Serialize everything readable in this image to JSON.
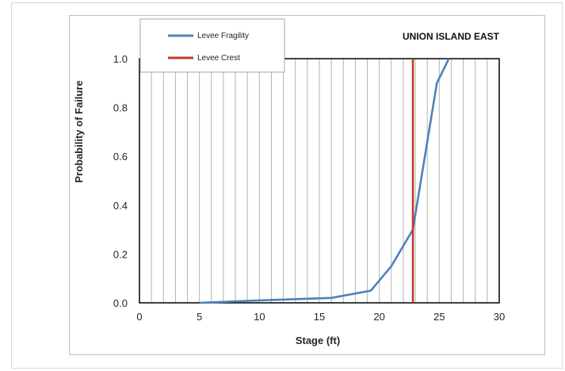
{
  "chart_data": {
    "type": "line",
    "title": "UNION ISLAND EAST",
    "xlabel": "Stage (ft)",
    "ylabel": "Probability of Failure",
    "xlim": [
      0,
      30
    ],
    "ylim": [
      0,
      1.0
    ],
    "x_ticks": [
      "0",
      "5",
      "10",
      "15",
      "20",
      "25",
      "30"
    ],
    "y_ticks": [
      "0.0",
      "0.2",
      "0.4",
      "0.6",
      "0.8",
      "1.0"
    ],
    "grid": "vertical",
    "legend_position": "top-left",
    "series": [
      {
        "name": "Levee Fragility",
        "color": "#4f81bd",
        "x": [
          5.0,
          10.0,
          16.0,
          19.3,
          21.0,
          22.8,
          24.8,
          25.8
        ],
        "y": [
          0.0,
          0.01,
          0.02,
          0.05,
          0.15,
          0.3,
          0.9,
          1.0
        ]
      },
      {
        "name": "Levee Crest",
        "color": "#c0392b",
        "x": [
          22.8,
          22.8
        ],
        "y": [
          0.0,
          1.0
        ]
      }
    ]
  }
}
